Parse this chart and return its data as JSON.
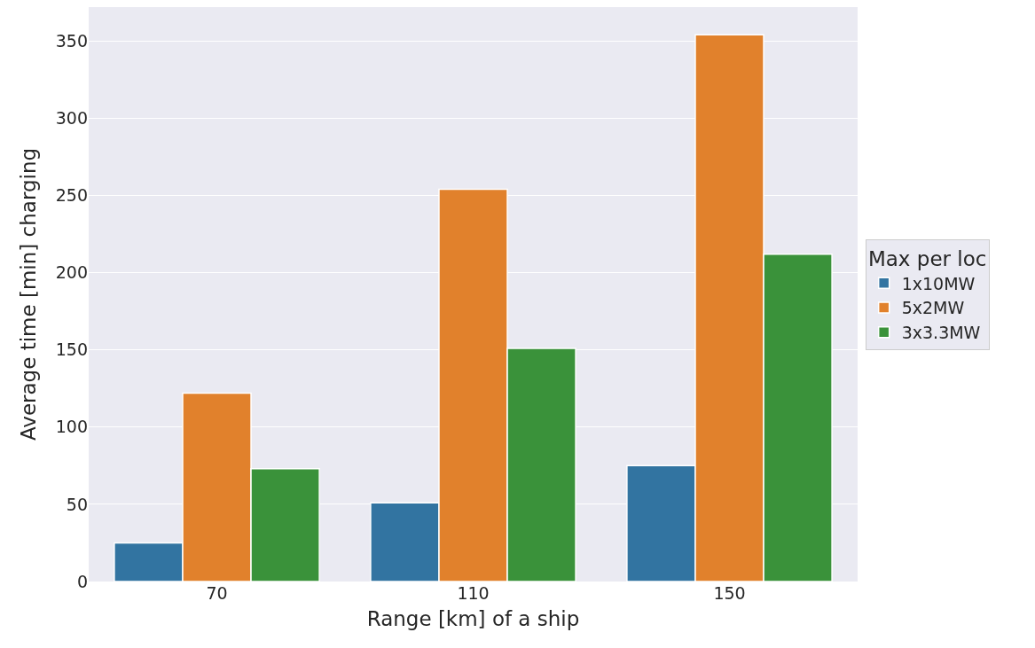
{
  "chart_data": {
    "type": "bar",
    "xlabel": "Range [km] of a ship",
    "ylabel": "Average time [min] charging",
    "legend_title": "Max per loc",
    "categories": [
      "70",
      "110",
      "150"
    ],
    "series": [
      {
        "name": "1x10MW",
        "color": "#3274a1",
        "values": [
          25,
          51,
          75
        ]
      },
      {
        "name": "5x2MW",
        "color": "#e1812c",
        "values": [
          122,
          254,
          354
        ]
      },
      {
        "name": "3x3.3MW",
        "color": "#3a923a",
        "values": [
          73,
          151,
          212
        ]
      }
    ],
    "ylim": [
      0,
      372
    ],
    "yticks": [
      0,
      50,
      100,
      150,
      200,
      250,
      300,
      350
    ],
    "grid": "y",
    "legend": "right"
  }
}
